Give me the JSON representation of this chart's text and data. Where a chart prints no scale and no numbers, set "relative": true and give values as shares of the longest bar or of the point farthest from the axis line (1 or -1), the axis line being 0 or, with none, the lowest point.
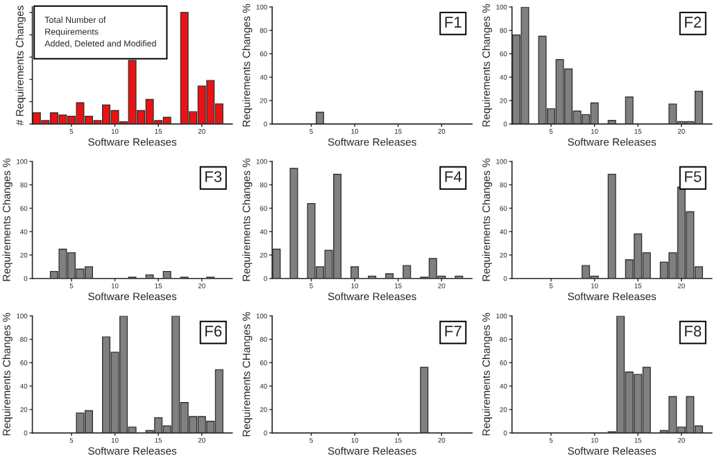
{
  "chart_data": [
    {
      "type": "bar",
      "relative": true,
      "ylabel": "# Requirements Changes",
      "xlabel": "Software Releases",
      "annotations": [
        "Total Number of\nRequirements\nAdded, Deleted and Modified"
      ],
      "x": [
        1,
        2,
        3,
        4,
        5,
        6,
        7,
        8,
        9,
        10,
        11,
        12,
        13,
        14,
        15,
        16,
        17,
        18,
        19,
        20,
        21,
        22
      ],
      "xlim": [
        0.5,
        23.5
      ],
      "xticks": [
        5,
        10,
        15,
        20
      ],
      "series": [
        {
          "color": "#ee1111",
          "values": [
            0.1,
            0.03,
            0.1,
            0.08,
            0.07,
            0.19,
            0.07,
            0.03,
            0.17,
            0.12,
            0.02,
            0.57,
            0.12,
            0.22,
            0.03,
            0.06,
            null,
            1.0,
            0.11,
            0.34,
            0.39,
            0.18
          ]
        }
      ]
    },
    {
      "type": "bar",
      "title": "F1",
      "ylabel": "Requirements Changes %",
      "xlabel": "Software Releases",
      "x": [
        6
      ],
      "xlim": [
        0.5,
        23.5
      ],
      "xticks": [
        5,
        10,
        15,
        20
      ],
      "ylim": [
        0,
        100
      ],
      "yticks": [
        0,
        20,
        40,
        60,
        80,
        100
      ],
      "series": [
        {
          "color": "#808080",
          "values": [
            10
          ]
        }
      ]
    },
    {
      "type": "bar",
      "title": "F2",
      "ylabel": "Requirements Changes %",
      "xlabel": "Software Releases",
      "x": [
        1,
        2,
        4,
        5,
        6,
        7,
        8,
        9,
        10,
        12,
        14,
        19,
        20,
        21,
        22
      ],
      "xlim": [
        0.5,
        23.5
      ],
      "xticks": [
        5,
        10,
        15,
        20
      ],
      "ylim": [
        0,
        100
      ],
      "yticks": [
        0,
        20,
        40,
        60,
        80,
        100
      ],
      "series": [
        {
          "color": "#808080",
          "values": [
            76,
            100,
            75,
            13,
            55,
            47,
            11,
            8,
            18,
            3,
            23,
            17,
            2,
            2,
            28
          ]
        }
      ]
    },
    {
      "type": "bar",
      "title": "F3",
      "ylabel": "Requirements Changes %",
      "xlabel": "Software Releases",
      "x": [
        3,
        4,
        5,
        6,
        7,
        12,
        14,
        16,
        18,
        21
      ],
      "xlim": [
        0.5,
        23.5
      ],
      "xticks": [
        5,
        10,
        15,
        20
      ],
      "ylim": [
        0,
        100
      ],
      "yticks": [
        0,
        20,
        40,
        60,
        80,
        100
      ],
      "series": [
        {
          "color": "#808080",
          "values": [
            6,
            25,
            22,
            8,
            10,
            1,
            3,
            6,
            1,
            1
          ]
        }
      ]
    },
    {
      "type": "bar",
      "title": "F4",
      "ylabel": "Requirements Changes %",
      "xlabel": "Software Releases",
      "x": [
        1,
        3,
        5,
        6,
        7,
        8,
        10,
        12,
        14,
        16,
        18,
        19,
        20,
        22
      ],
      "xlim": [
        0.5,
        23.5
      ],
      "xticks": [
        5,
        10,
        15,
        20
      ],
      "ylim": [
        0,
        100
      ],
      "yticks": [
        0,
        20,
        40,
        60,
        80,
        100
      ],
      "series": [
        {
          "color": "#808080",
          "values": [
            25,
            94,
            64,
            10,
            24,
            89,
            10,
            2,
            4,
            11,
            1,
            17,
            2,
            2
          ]
        }
      ]
    },
    {
      "type": "bar",
      "title": "F5",
      "ylabel": "Requirements Changes %",
      "xlabel": "Software Releases",
      "x": [
        9,
        10,
        12,
        14,
        15,
        16,
        18,
        19,
        20,
        21,
        22
      ],
      "xlim": [
        0.5,
        23.5
      ],
      "xticks": [
        5,
        10,
        15,
        20
      ],
      "ylim": [
        0,
        100
      ],
      "yticks": [
        0,
        20,
        40,
        60,
        80,
        100
      ],
      "series": [
        {
          "color": "#808080",
          "values": [
            11,
            2,
            89,
            16,
            38,
            22,
            14,
            22,
            78,
            57,
            10
          ]
        }
      ]
    },
    {
      "type": "bar",
      "title": "F6",
      "ylabel": "Requirements Changes %",
      "xlabel": "Software Releases",
      "x": [
        6,
        7,
        9,
        10,
        11,
        12,
        14,
        15,
        16,
        17,
        18,
        19,
        20,
        21,
        22
      ],
      "xlim": [
        0.5,
        23.5
      ],
      "xticks": [
        5,
        10,
        15,
        20
      ],
      "ylim": [
        0,
        100
      ],
      "yticks": [
        0,
        20,
        40,
        60,
        80,
        100
      ],
      "series": [
        {
          "color": "#808080",
          "values": [
            17,
            19,
            82,
            69,
            100,
            5,
            2,
            13,
            6,
            100,
            26,
            14,
            14,
            10,
            54
          ]
        }
      ]
    },
    {
      "type": "bar",
      "title": "F7",
      "ylabel": "Requirements CHanges %",
      "xlabel": "Software Releases",
      "x": [
        18
      ],
      "xlim": [
        0.5,
        23.5
      ],
      "xticks": [
        5,
        10,
        15,
        20
      ],
      "ylim": [
        0,
        100
      ],
      "yticks": [
        0,
        20,
        40,
        60,
        80,
        100
      ],
      "series": [
        {
          "color": "#808080",
          "values": [
            56
          ]
        }
      ]
    },
    {
      "type": "bar",
      "title": "F8",
      "ylabel": "Requirements Changes %",
      "xlabel": "Software Releases",
      "x": [
        12,
        13,
        14,
        15,
        16,
        18,
        19,
        20,
        21,
        22
      ],
      "xlim": [
        0.5,
        23.5
      ],
      "xticks": [
        5,
        10,
        15,
        20
      ],
      "ylim": [
        0,
        100
      ],
      "yticks": [
        0,
        20,
        40,
        60,
        80,
        100
      ],
      "series": [
        {
          "color": "#808080",
          "values": [
            1,
            100,
            52,
            50,
            56,
            2,
            31,
            5,
            31,
            6
          ]
        }
      ]
    }
  ]
}
